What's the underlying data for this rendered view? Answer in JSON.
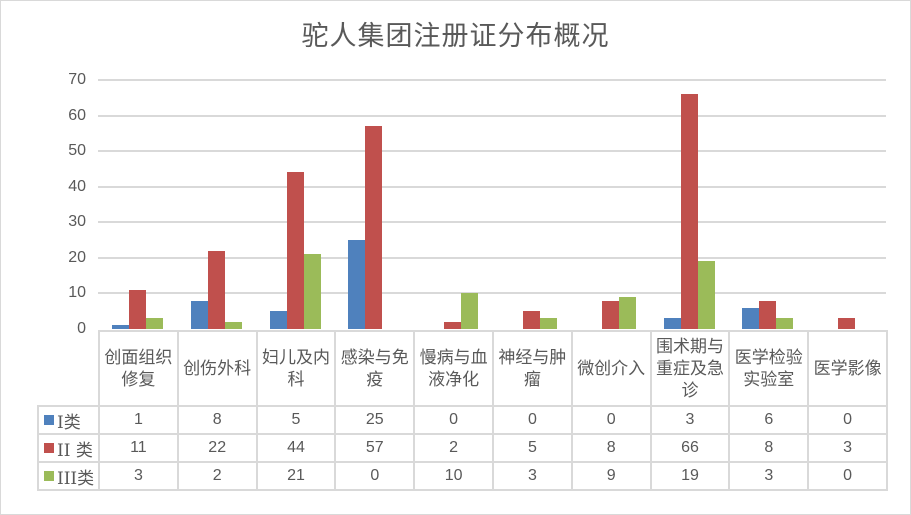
{
  "chart_data": {
    "type": "bar",
    "title": "驼人集团注册证分布概况",
    "xlabel": "",
    "ylabel": "",
    "ylim": [
      0,
      70
    ],
    "yticks": [
      0,
      10,
      20,
      30,
      40,
      50,
      60,
      70
    ],
    "grid": true,
    "legend_position": "data-table",
    "categories": [
      "创面组织修复",
      "创伤外科",
      "妇儿及内科",
      "感染与免疫",
      "慢病与血液净化",
      "神经与肿瘤",
      "微创介入",
      "围术期与重症及急诊",
      "医学检验实验室",
      "医学影像"
    ],
    "category_lines": [
      [
        "创面组织",
        "修复"
      ],
      [
        "创伤外科"
      ],
      [
        "妇儿及内",
        "科"
      ],
      [
        "感染与免",
        "疫"
      ],
      [
        "慢病与血",
        "液净化"
      ],
      [
        "神经与肿",
        "瘤"
      ],
      [
        "微创介入"
      ],
      [
        "围术期与",
        "重症及急",
        "诊"
      ],
      [
        "医学检验",
        "实验室"
      ],
      [
        "医学影像"
      ]
    ],
    "series": [
      {
        "name": "I类",
        "color": "#4f81bd",
        "values": [
          1,
          8,
          5,
          25,
          0,
          0,
          0,
          3,
          6,
          0
        ]
      },
      {
        "name": "II 类",
        "color": "#c0504d",
        "values": [
          11,
          22,
          44,
          57,
          2,
          5,
          8,
          66,
          8,
          3
        ]
      },
      {
        "name": "III类",
        "color": "#9bbb59",
        "values": [
          3,
          2,
          21,
          0,
          10,
          3,
          9,
          19,
          3,
          0
        ]
      }
    ]
  },
  "colors": {
    "text": "#595959",
    "grid": "#d9d9d9"
  }
}
